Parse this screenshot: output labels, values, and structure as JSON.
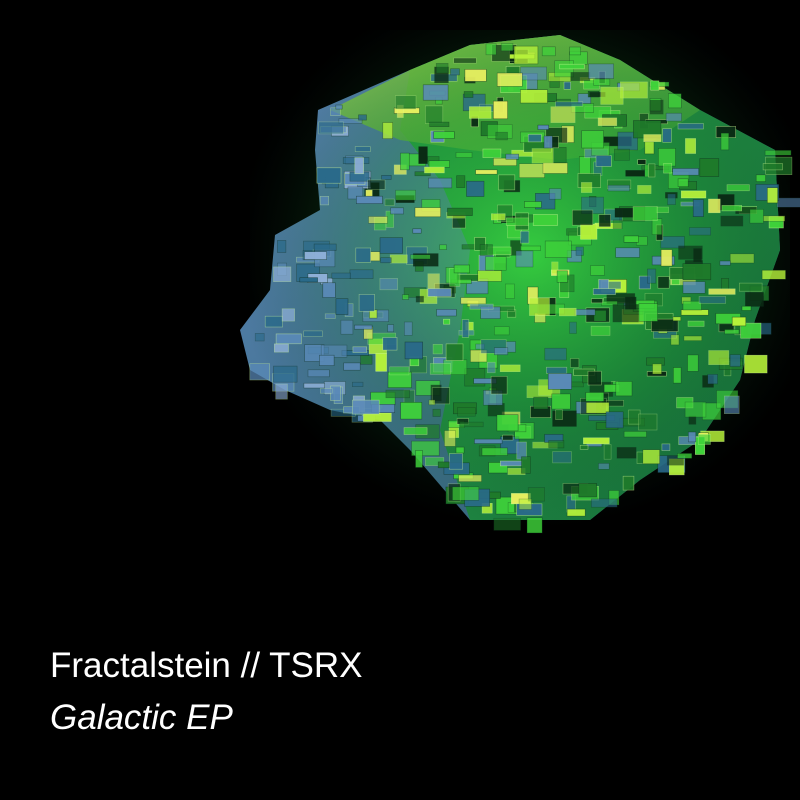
{
  "cover": {
    "background": "#000000",
    "artist": "Fractalstein // TSRX",
    "title": "Galactic EP",
    "text_color": "#ffffff"
  },
  "artwork": {
    "subject": "fractal-glass-cube",
    "palette": [
      "#0a2a14",
      "#1f7a2a",
      "#3fd23a",
      "#b6f23a",
      "#e8f060",
      "#2a6a8a",
      "#5a8ab8",
      "#8fb0d8"
    ]
  }
}
